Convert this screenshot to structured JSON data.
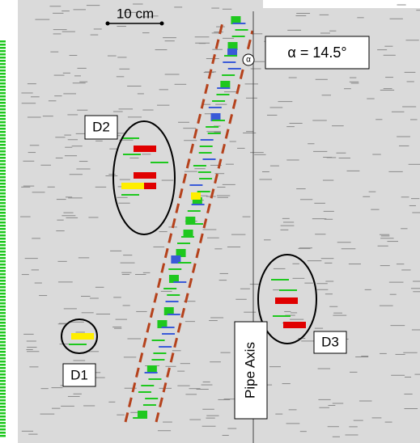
{
  "scale_bar": {
    "label": "10 cm"
  },
  "angle": {
    "symbol": "α",
    "label": "α = 14.5°"
  },
  "defects": [
    {
      "label": "D1"
    },
    {
      "label": "D2"
    },
    {
      "label": "D3"
    }
  ],
  "axis": {
    "label": "Pipe Axis"
  }
}
